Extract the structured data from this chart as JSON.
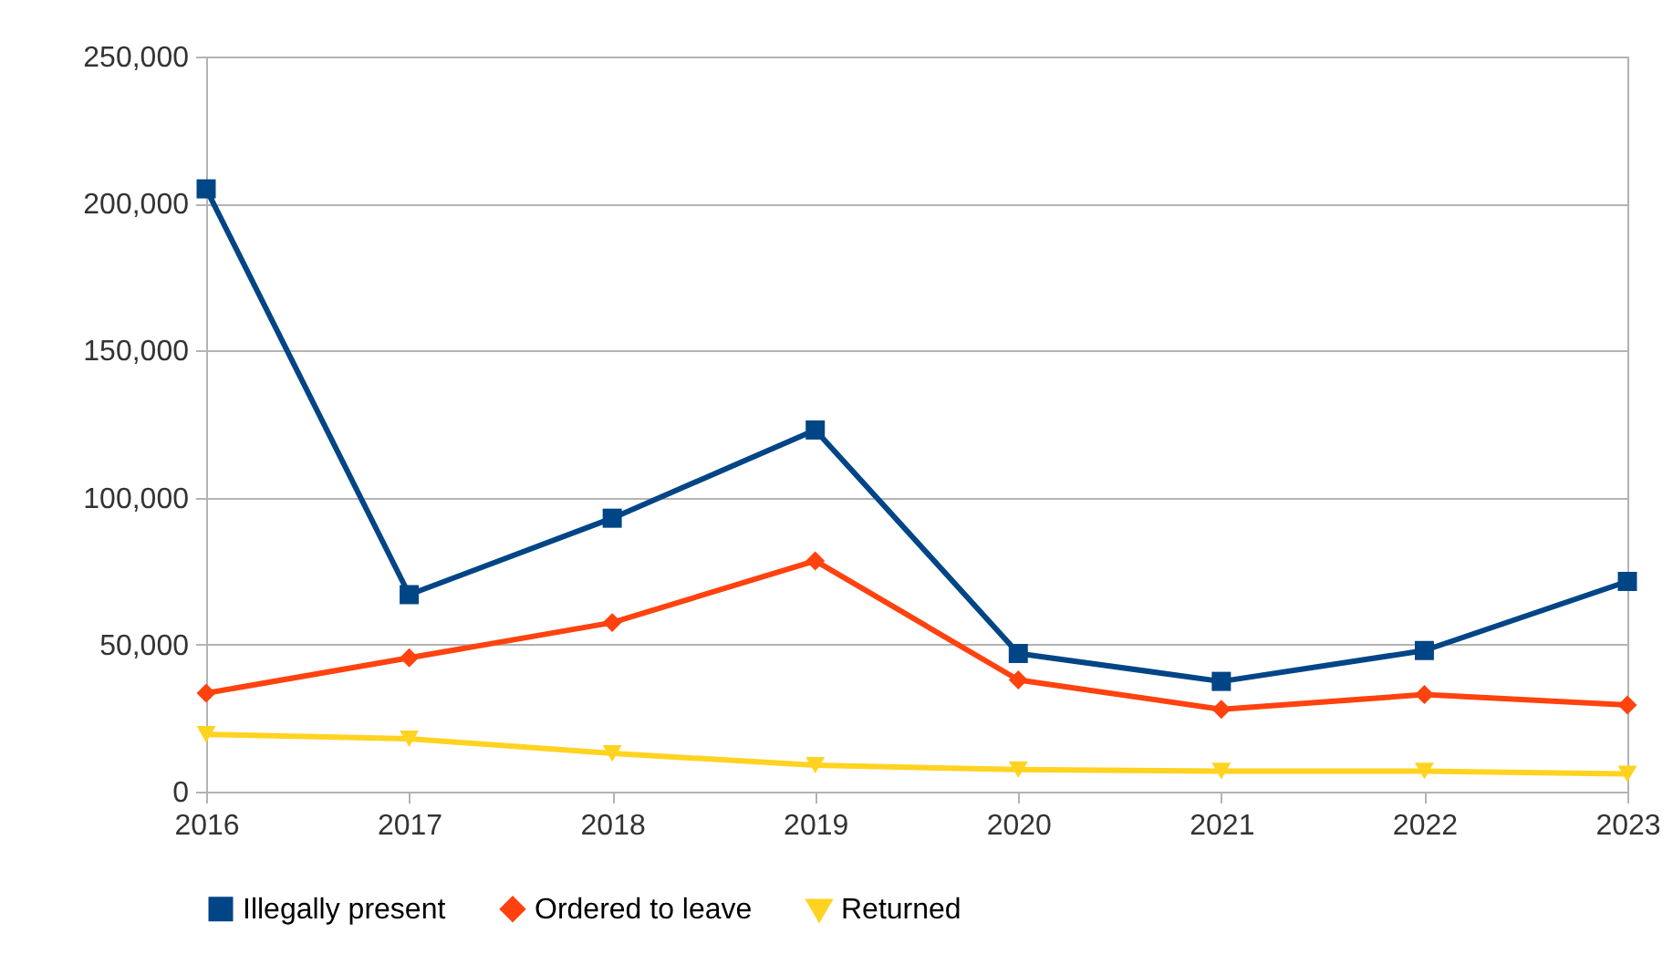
{
  "chart_data": {
    "type": "line",
    "categories": [
      "2016",
      "2017",
      "2018",
      "2019",
      "2020",
      "2021",
      "2022",
      "2023"
    ],
    "series": [
      {
        "name": "Illegally present",
        "color": "#004586",
        "marker": "square",
        "values": [
          205000,
          67000,
          93000,
          123000,
          47000,
          37500,
          48000,
          71500
        ]
      },
      {
        "name": "Ordered to leave",
        "color": "#ff420e",
        "marker": "diamond",
        "values": [
          33500,
          45500,
          57500,
          78500,
          38000,
          28000,
          33000,
          29500
        ]
      },
      {
        "name": "Returned",
        "color": "#ffd320",
        "marker": "triangle",
        "values": [
          19500,
          18000,
          13000,
          9000,
          7500,
          7000,
          7000,
          6000
        ]
      }
    ],
    "ylim": [
      0,
      250000
    ],
    "yticks": [
      0,
      {
        "value": 50000,
        "label": "50,000"
      },
      {
        "value": 100000,
        "label": "100,000"
      },
      {
        "value": 150000,
        "label": "150,000"
      },
      {
        "value": 200000,
        "label": "200,000"
      },
      {
        "value": 250000,
        "label": "250,000"
      }
    ],
    "grid": "y",
    "legend": "bottom"
  }
}
